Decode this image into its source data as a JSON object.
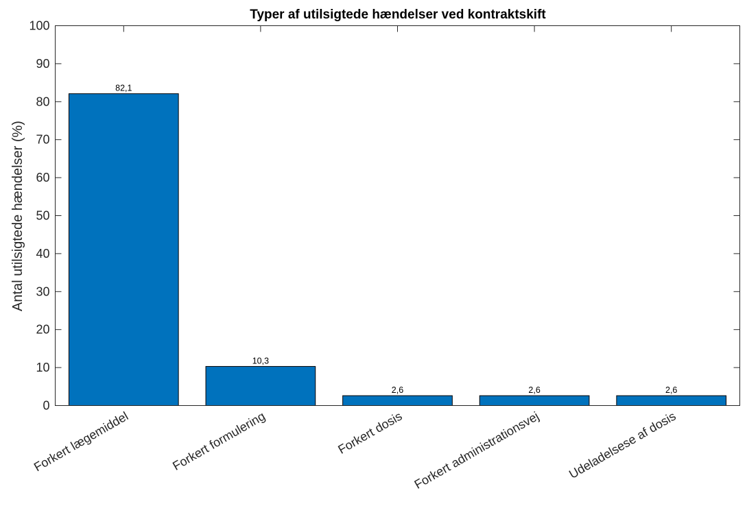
{
  "chart_data": {
    "type": "bar",
    "title": "Typer af utilsigtede hændelser ved kontraktskift",
    "xlabel": "",
    "ylabel": "Antal utilsigtede hændelser (%)",
    "categories": [
      "Forkert lægemiddel",
      "Forkert formulering",
      "Forkert dosis",
      "Forkert administrationsvej",
      "Udeladelsese af dosis"
    ],
    "values": [
      82.1,
      10.3,
      2.6,
      2.6,
      2.6
    ],
    "data_labels": [
      "82,1",
      "10,3",
      "2,6",
      "2,6",
      "2,6"
    ],
    "ylim": [
      0,
      100
    ],
    "yticks": [
      0,
      10,
      20,
      30,
      40,
      50,
      60,
      70,
      80,
      90,
      100
    ],
    "grid": false,
    "legend": "none",
    "bar_color": "#0072BD",
    "x_label_rotation_deg": -30
  }
}
